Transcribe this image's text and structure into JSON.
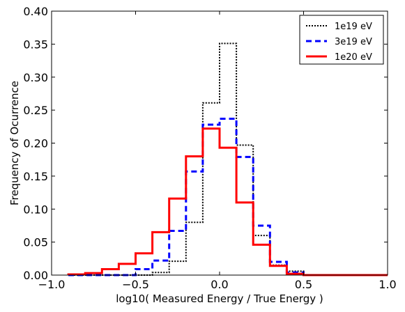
{
  "chart_data": {
    "type": "line",
    "step": "histogram",
    "xlabel": "log10( Measured Energy / True Energy )",
    "ylabel": "Frequency of Ocurrence",
    "xlim": [
      -1.0,
      1.0
    ],
    "ylim": [
      0.0,
      0.4
    ],
    "xticks": [
      "−1.0",
      "−0.5",
      "0.0",
      "0.5",
      "1.0"
    ],
    "xtick_values": [
      -1.0,
      -0.5,
      0.0,
      0.5,
      1.0
    ],
    "yticks": [
      "0.00",
      "0.05",
      "0.10",
      "0.15",
      "0.20",
      "0.25",
      "0.30",
      "0.35",
      "0.40"
    ],
    "ytick_values": [
      0.0,
      0.05,
      0.1,
      0.15,
      0.2,
      0.25,
      0.3,
      0.35,
      0.4
    ],
    "grid": false,
    "legend_position": "top-right",
    "bin_edges": [
      -0.9,
      -0.8,
      -0.7,
      -0.6,
      -0.5,
      -0.4,
      -0.3,
      -0.2,
      -0.1,
      0.0,
      0.1,
      0.2,
      0.3,
      0.4,
      0.5,
      0.6,
      0.7,
      0.8,
      0.9,
      1.0
    ],
    "series": [
      {
        "name": "1e19 eV",
        "color": "#000000",
        "style": "dotted",
        "values": [
          0,
          0,
          0,
          0,
          0,
          0.004,
          0.021,
          0.08,
          0.261,
          0.351,
          0.197,
          0.06,
          0.015,
          0.006,
          0,
          0,
          0,
          0,
          0
        ]
      },
      {
        "name": "3e19 eV",
        "color": "#0000ff",
        "style": "dashed",
        "values": [
          0,
          0,
          0,
          0,
          0.009,
          0.022,
          0.067,
          0.157,
          0.228,
          0.237,
          0.179,
          0.075,
          0.02,
          0.004,
          0,
          0,
          0,
          0,
          0
        ]
      },
      {
        "name": "1e20 eV",
        "color": "#ff0000",
        "style": "solid",
        "values": [
          0.001,
          0.003,
          0.009,
          0.017,
          0.033,
          0.065,
          0.116,
          0.18,
          0.222,
          0.193,
          0.11,
          0.046,
          0.014,
          0.002,
          0,
          0,
          0,
          0,
          0
        ]
      }
    ]
  }
}
